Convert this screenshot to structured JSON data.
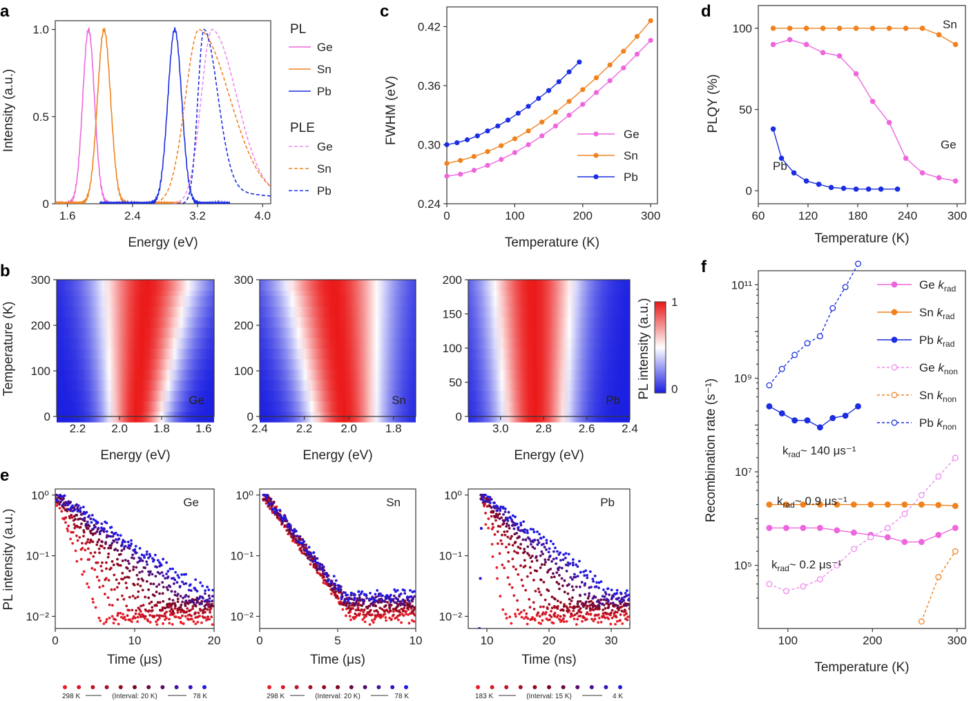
{
  "panel_labels": {
    "a": "a",
    "b": "b",
    "c": "c",
    "d": "d",
    "e": "e",
    "f": "f"
  },
  "chart_data": [
    {
      "id": "a",
      "type": "line",
      "xlabel": "Energy (eV)",
      "ylabel": "Intensity (a.u.)",
      "xlim": [
        1.45,
        4.1
      ],
      "ylim": [
        0,
        1.05
      ],
      "xticks": [
        "1.6",
        "2.4",
        "3.2",
        "4.0"
      ],
      "yticks": [
        "0",
        "0.5",
        "1.0"
      ],
      "legend_group_titles": [
        "PL",
        "PLE"
      ],
      "series": [
        {
          "name": "Ge",
          "group": "PL",
          "color": "#ee66dd",
          "style": "solid",
          "peak": 1.86,
          "width": 0.17,
          "start": 1.45,
          "end": 2.7
        },
        {
          "name": "Sn",
          "group": "PL",
          "color": "#f0821e",
          "style": "solid",
          "peak": 2.05,
          "width": 0.19,
          "start": 1.45,
          "end": 3.0
        },
        {
          "name": "Pb",
          "group": "PL",
          "color": "#1a2de0",
          "style": "solid",
          "peak": 2.92,
          "width": 0.2,
          "start": 2.0,
          "end": 3.6
        },
        {
          "name": "Ge",
          "group": "PLE",
          "color": "#ee88ee",
          "style": "dashed",
          "peak": 3.38,
          "width": 0.32,
          "start": 2.9,
          "end": 4.1
        },
        {
          "name": "Sn",
          "group": "PLE",
          "color": "#f0821e",
          "style": "dashed",
          "peak": 3.22,
          "width": 0.4,
          "start": 2.75,
          "end": 4.1
        },
        {
          "name": "Pb",
          "group": "PLE",
          "color": "#1a2de0",
          "style": "dashed",
          "peak": 3.28,
          "width": 0.18,
          "start": 2.95,
          "end": 4.1
        }
      ]
    },
    {
      "id": "b",
      "type": "heatmap",
      "colorbar_label": "PL intensity (a.u.)",
      "colorbar_ticks": [
        "0",
        "1"
      ],
      "maps": [
        {
          "name": "Ge",
          "xlabel": "Energy (eV)",
          "ylabel": "Temperature (K)",
          "xlim": [
            2.3,
            1.55
          ],
          "ylim": [
            0,
            300
          ],
          "xticks": [
            "2.2",
            "2.0",
            "1.8",
            "1.6"
          ],
          "yticks": [
            "0",
            "100",
            "200",
            "300"
          ],
          "center_low": 1.92,
          "center_high": 1.87,
          "halfwidth_low": 0.12,
          "halfwidth_high": 0.2
        },
        {
          "name": "Sn",
          "xlabel": "Energy (eV)",
          "ylabel": "",
          "xlim": [
            2.4,
            1.7
          ],
          "ylim": [
            0,
            300
          ],
          "xticks": [
            "2.4",
            "2.2",
            "2.0",
            "1.8"
          ],
          "yticks": [
            "0",
            "100",
            "200",
            "300"
          ],
          "center_low": 2.02,
          "center_high": 2.07,
          "halfwidth_low": 0.14,
          "halfwidth_high": 0.2
        },
        {
          "name": "Pb",
          "xlabel": "Energy (eV)",
          "ylabel": "",
          "xlim": [
            3.15,
            2.4
          ],
          "ylim": [
            0,
            200
          ],
          "xticks": [
            "3.0",
            "2.8",
            "2.6",
            "2.4"
          ],
          "yticks": [
            "0",
            "50",
            "100",
            "150",
            "200"
          ],
          "center_low": 2.84,
          "center_high": 2.85,
          "halfwidth_low": 0.14,
          "halfwidth_high": 0.18
        }
      ]
    },
    {
      "id": "c",
      "type": "line",
      "xlabel": "Temperature (K)",
      "ylabel": "FWHM (eV)",
      "xlim": [
        0,
        310
      ],
      "ylim": [
        0.24,
        0.44
      ],
      "xticks": [
        "0",
        "100",
        "200",
        "300"
      ],
      "yticks": [
        "0.24",
        "0.30",
        "0.36",
        "0.42"
      ],
      "series": [
        {
          "name": "Ge",
          "color": "#ee66dd",
          "x": [
            0,
            20,
            40,
            60,
            80,
            100,
            120,
            140,
            160,
            180,
            200,
            220,
            240,
            260,
            280,
            300
          ],
          "y": [
            0.268,
            0.27,
            0.274,
            0.279,
            0.285,
            0.292,
            0.3,
            0.309,
            0.319,
            0.33,
            0.341,
            0.353,
            0.365,
            0.378,
            0.392,
            0.406
          ]
        },
        {
          "name": "Sn",
          "color": "#f0821e",
          "x": [
            0,
            20,
            40,
            60,
            80,
            100,
            120,
            140,
            160,
            180,
            200,
            220,
            240,
            260,
            280,
            300
          ],
          "y": [
            0.281,
            0.284,
            0.288,
            0.293,
            0.299,
            0.306,
            0.314,
            0.323,
            0.333,
            0.344,
            0.356,
            0.368,
            0.381,
            0.395,
            0.41,
            0.426
          ]
        },
        {
          "name": "Pb",
          "color": "#1a2de0",
          "x": [
            0,
            15,
            30,
            45,
            60,
            75,
            90,
            105,
            120,
            135,
            150,
            165,
            180,
            195
          ],
          "y": [
            0.3,
            0.302,
            0.305,
            0.309,
            0.314,
            0.319,
            0.325,
            0.332,
            0.339,
            0.347,
            0.355,
            0.364,
            0.374,
            0.384
          ]
        }
      ]
    },
    {
      "id": "d",
      "type": "line",
      "xlabel": "Temperature (K)",
      "ylabel": "PLQY (%)",
      "xlim": [
        60,
        310
      ],
      "ylim": [
        -8,
        114
      ],
      "xticks": [
        "60",
        "120",
        "180",
        "240",
        "300"
      ],
      "yticks": [
        "0",
        "50",
        "100"
      ],
      "annotations": [
        "Sn",
        "Ge",
        "Pb"
      ],
      "series": [
        {
          "name": "Sn",
          "color": "#f0821e",
          "x": [
            78,
            98,
            118,
            138,
            158,
            178,
            198,
            218,
            238,
            258,
            278,
            298
          ],
          "y": [
            100,
            100,
            100,
            100,
            100,
            100,
            100,
            100,
            100,
            100,
            96,
            90
          ]
        },
        {
          "name": "Ge",
          "color": "#ee66dd",
          "x": [
            78,
            98,
            118,
            138,
            158,
            178,
            198,
            218,
            238,
            258,
            278,
            298
          ],
          "y": [
            90,
            93,
            90,
            85,
            83,
            72,
            55,
            42,
            20,
            11,
            8,
            6
          ]
        },
        {
          "name": "Pb",
          "color": "#1a2de0",
          "x": [
            78,
            88,
            103,
            118,
            133,
            148,
            163,
            178,
            193,
            208,
            228
          ],
          "y": [
            38,
            20,
            11,
            6,
            4,
            2,
            1.5,
            1,
            1,
            1,
            1
          ]
        }
      ]
    },
    {
      "id": "e",
      "type": "scatter",
      "ylabel": "PL intensity (a.u.)",
      "decays": [
        {
          "name": "Ge",
          "xlabel": "Time (μs)",
          "xlim": [
            0,
            20
          ],
          "xticks": [
            "0",
            "10",
            "20"
          ],
          "t0": 0,
          "tau_fast": 1.2,
          "tau_slow": 5.2,
          "floor": 0.009,
          "legend_start": "298 K",
          "legend_interval": "(Interval: 20 K)",
          "legend_end": "78 K"
        },
        {
          "name": "Sn",
          "xlabel": "Time (μs)",
          "xlim": [
            0,
            10
          ],
          "xticks": [
            "0",
            "5",
            "10"
          ],
          "t0": 0.3,
          "tau_fast": 1.2,
          "tau_slow": 1.35,
          "floor": 0.009,
          "legend_start": "298 K",
          "legend_interval": "(Interval: 20 K)",
          "legend_end": "78 K"
        },
        {
          "name": "Pb",
          "xlabel": "Time (ns)",
          "xlim": [
            7,
            33
          ],
          "xticks": [
            "10",
            "20",
            "30"
          ],
          "t0": 9.2,
          "tau_fast": 0.8,
          "tau_slow": 5.8,
          "floor": 0.009,
          "legend_start": "183 K",
          "legend_interval": "(Interval: 15 K)",
          "legend_end": "4 K"
        }
      ],
      "yticks": [
        "10⁻²",
        "10⁻¹",
        "10⁰"
      ]
    },
    {
      "id": "f",
      "type": "line",
      "xlabel": "Temperature (K)",
      "ylabel": "Recombination rate (s⁻¹)",
      "xlim": [
        65,
        310
      ],
      "ylog_range": [
        3.65,
        11.3
      ],
      "xticks": [
        "100",
        "200",
        "300"
      ],
      "yticks": [
        {
          "exp": 5,
          "label": "10⁵"
        },
        {
          "exp": 7,
          "label": "10⁷"
        },
        {
          "exp": 9,
          "label": "10⁹"
        },
        {
          "exp": 11,
          "label": "10¹¹"
        }
      ],
      "annotations": [
        {
          "text": "k_rad ~ 140 μs⁻¹",
          "color": "#1a2de0"
        },
        {
          "text": "k_rad ~ 0.9 μs⁻¹",
          "color": "#f0821e"
        },
        {
          "text": "k_rad ~ 0.2 μs⁻¹",
          "color": "#ee66dd"
        }
      ],
      "series": [
        {
          "name": "Ge k_rad",
          "label_main": "Ge ",
          "label_sub": "rad",
          "color": "#ee66dd",
          "filled": true,
          "dashed": false,
          "x": [
            78,
            98,
            118,
            138,
            158,
            178,
            198,
            218,
            238,
            258,
            278,
            298
          ],
          "y": [
            5.8,
            5.8,
            5.8,
            5.8,
            5.75,
            5.7,
            5.65,
            5.6,
            5.5,
            5.5,
            5.65,
            5.8
          ]
        },
        {
          "name": "Sn k_rad",
          "label_main": "Sn ",
          "label_sub": "rad",
          "color": "#f0821e",
          "filled": true,
          "dashed": false,
          "x": [
            78,
            98,
            118,
            138,
            158,
            178,
            198,
            218,
            238,
            258,
            278,
            298
          ],
          "y": [
            6.3,
            6.3,
            6.3,
            6.3,
            6.3,
            6.3,
            6.3,
            6.3,
            6.3,
            6.3,
            6.29,
            6.27
          ]
        },
        {
          "name": "Pb k_rad",
          "label_main": "Pb ",
          "label_sub": "rad",
          "color": "#1a2de0",
          "filled": true,
          "dashed": false,
          "x": [
            78,
            93,
            108,
            123,
            138,
            153,
            168,
            183
          ],
          "y": [
            8.4,
            8.25,
            8.1,
            8.1,
            7.95,
            8.15,
            8.2,
            8.4
          ]
        },
        {
          "name": "Ge k_non",
          "label_main": "Ge ",
          "label_sub": "non",
          "color": "#ee88ee",
          "filled": false,
          "dashed": true,
          "x": [
            78,
            98,
            118,
            138,
            158,
            178,
            198,
            218,
            238,
            258,
            278,
            298
          ],
          "y": [
            4.6,
            4.45,
            4.55,
            4.7,
            5.0,
            5.35,
            5.6,
            5.8,
            6.1,
            6.5,
            6.9,
            7.3
          ]
        },
        {
          "name": "Sn k_non",
          "label_main": "Sn ",
          "label_sub": "non",
          "color": "#f0821e",
          "filled": false,
          "dashed": true,
          "x": [
            258,
            278,
            298
          ],
          "y": [
            3.8,
            4.75,
            5.3
          ]
        },
        {
          "name": "Pb k_non",
          "label_main": "Pb ",
          "label_sub": "non",
          "color": "#1a2de0",
          "filled": false,
          "dashed": true,
          "x": [
            78,
            93,
            108,
            123,
            138,
            153,
            168,
            183
          ],
          "y": [
            8.85,
            9.2,
            9.5,
            9.75,
            9.9,
            10.5,
            10.95,
            11.45
          ]
        }
      ]
    }
  ]
}
